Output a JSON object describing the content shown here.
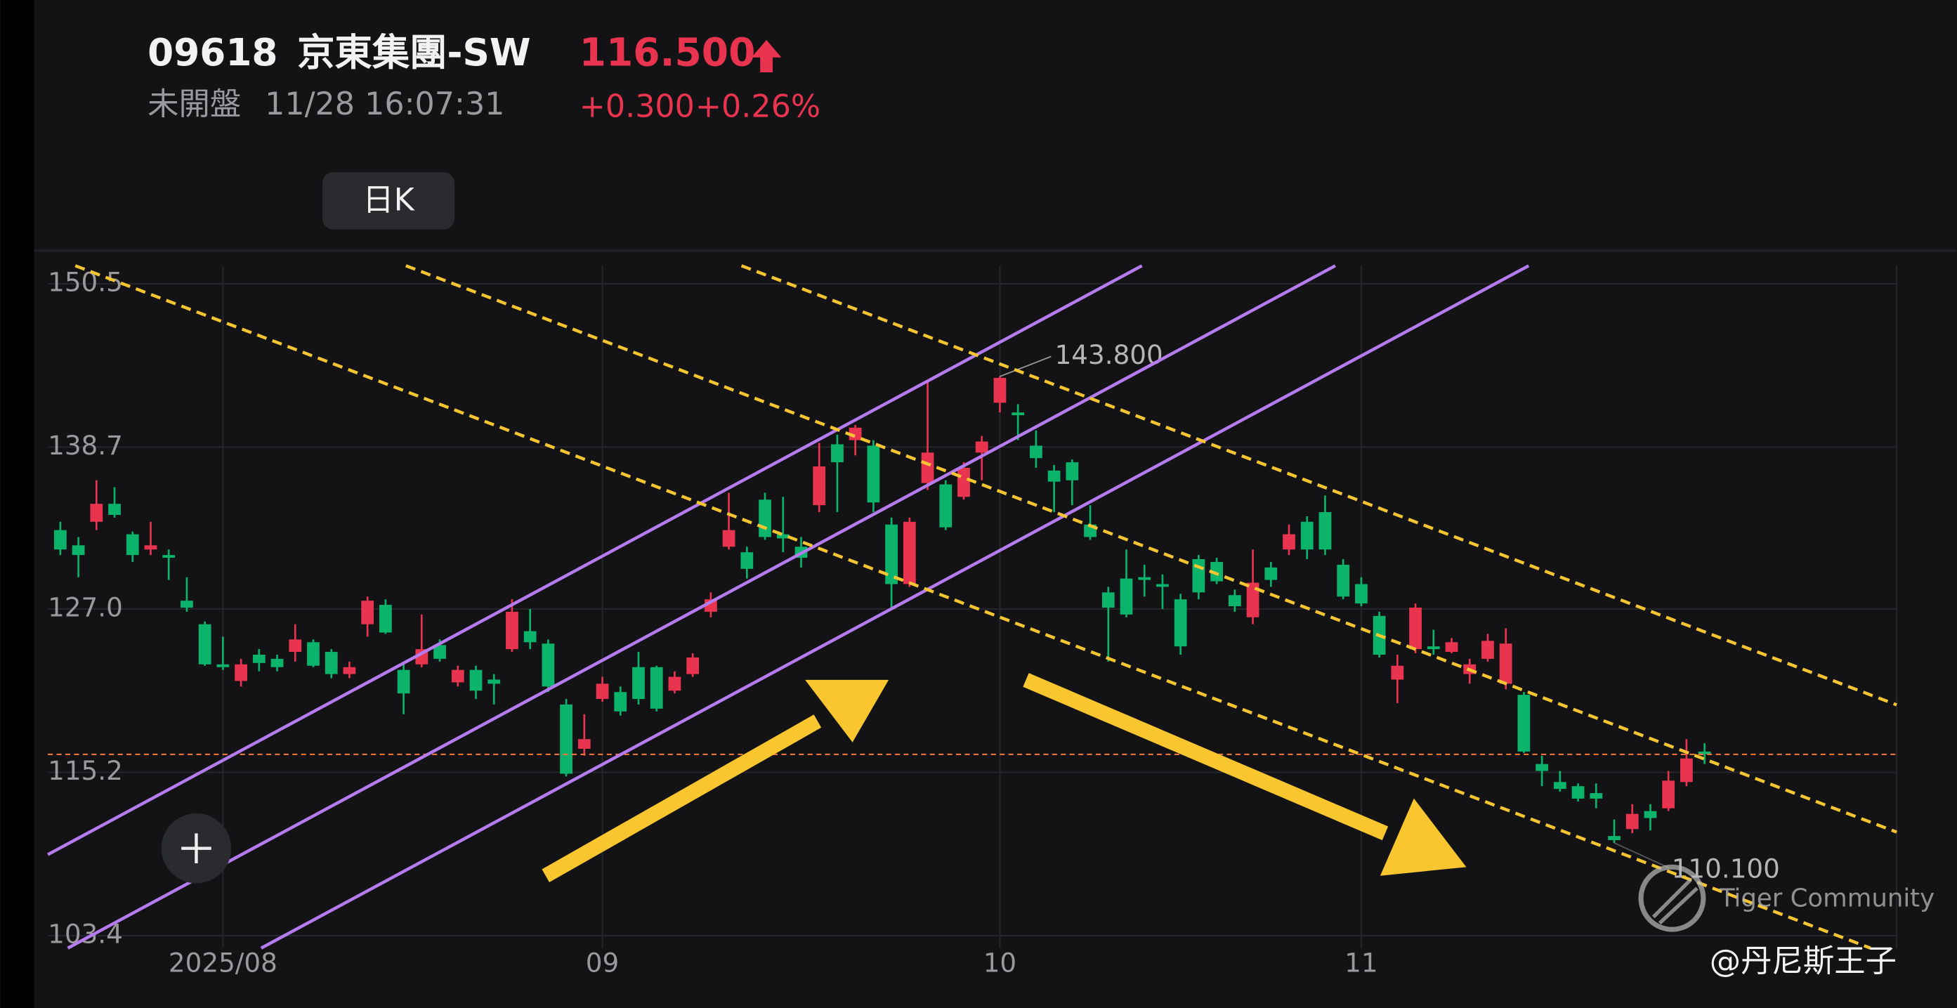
{
  "header": {
    "code": "09618",
    "name": "京東集團-SW",
    "price": "116.500",
    "status": "未開盤",
    "time": "11/28 16:07:31",
    "change": "+0.300",
    "change_pct": "+0.26%",
    "period_button": "日K"
  },
  "watermark": {
    "brand": "Tiger Community",
    "author": "@丹尼斯王子"
  },
  "chart_data": {
    "type": "candlestick",
    "up_color": "#e8344e",
    "down_color": "#0bb36b",
    "grid": true,
    "ylim": [
      102.5,
      151.8
    ],
    "yticks": [
      150.5,
      138.7,
      {
        "value": 127,
        "label": "127.0"
      },
      115.2,
      103.4
    ],
    "categories": [
      null,
      null,
      null,
      null,
      null,
      null,
      null,
      null,
      null,
      "2025/08",
      null,
      null,
      null,
      null,
      null,
      null,
      null,
      null,
      null,
      null,
      null,
      null,
      null,
      null,
      null,
      null,
      null,
      null,
      null,
      null,
      "09",
      null,
      null,
      null,
      null,
      null,
      null,
      null,
      null,
      null,
      null,
      null,
      null,
      null,
      null,
      null,
      null,
      null,
      null,
      null,
      null,
      null,
      "10",
      null,
      null,
      null,
      null,
      null,
      null,
      null,
      null,
      null,
      null,
      null,
      null,
      null,
      null,
      null,
      null,
      null,
      null,
      null,
      "11",
      null,
      null,
      null,
      null,
      null,
      null,
      null,
      null,
      null,
      null,
      null,
      null,
      null,
      null,
      null,
      null,
      null,
      null,
      null
    ],
    "ohlc": [
      [
        132.7,
        133.3,
        130.9,
        131.3
      ],
      [
        131.6,
        132.2,
        129.3,
        130.9
      ],
      [
        133.3,
        136.3,
        132.7,
        134.6
      ],
      [
        134.6,
        135.8,
        133.6,
        133.8
      ],
      [
        132.4,
        132.6,
        130.4,
        130.9
      ],
      [
        131.3,
        133.3,
        130.9,
        131.6
      ],
      [
        130.9,
        131.3,
        129.1,
        130.7
      ],
      [
        127.6,
        129.3,
        126.8,
        127.1
      ],
      [
        125.9,
        126.1,
        122.9,
        123.0
      ],
      [
        123.0,
        125.0,
        122.6,
        122.8
      ],
      [
        121.8,
        123.4,
        121.4,
        123.0
      ],
      [
        123.7,
        124.1,
        122.5,
        123.1
      ],
      [
        123.4,
        123.7,
        122.5,
        122.8
      ],
      [
        123.9,
        125.9,
        123.2,
        124.8
      ],
      [
        124.6,
        124.8,
        122.8,
        122.9
      ],
      [
        123.9,
        124.1,
        122.0,
        122.3
      ],
      [
        122.3,
        123.2,
        122.0,
        122.8
      ],
      [
        125.9,
        127.9,
        125.0,
        127.6
      ],
      [
        127.3,
        127.7,
        125.2,
        125.3
      ],
      [
        122.6,
        123.2,
        119.4,
        120.9
      ],
      [
        123.0,
        126.6,
        122.8,
        124.1
      ],
      [
        124.4,
        124.8,
        123.2,
        123.4
      ],
      [
        121.7,
        122.9,
        121.4,
        122.6
      ],
      [
        122.6,
        122.9,
        120.5,
        121.1
      ],
      [
        121.9,
        122.3,
        120.1,
        121.6
      ],
      [
        124.1,
        127.7,
        123.9,
        126.8
      ],
      [
        125.4,
        127.0,
        124.1,
        124.6
      ],
      [
        124.5,
        124.8,
        121.0,
        121.4
      ],
      [
        120.1,
        120.5,
        114.9,
        115.1
      ],
      [
        116.9,
        119.4,
        116.4,
        117.6
      ],
      [
        120.5,
        122.1,
        120.3,
        121.6
      ],
      [
        121.0,
        121.4,
        119.3,
        119.6
      ],
      [
        122.8,
        123.9,
        120.1,
        120.5
      ],
      [
        122.8,
        122.9,
        119.6,
        119.8
      ],
      [
        121.1,
        122.5,
        120.9,
        122.1
      ],
      [
        122.3,
        123.8,
        122.1,
        123.5
      ],
      [
        126.8,
        128.2,
        126.4,
        127.7
      ],
      [
        131.5,
        135.4,
        131.3,
        132.7
      ],
      [
        131.1,
        131.5,
        129.2,
        129.9
      ],
      [
        134.9,
        135.4,
        132.0,
        132.2
      ],
      [
        132.4,
        135.1,
        131.1,
        132.1
      ],
      [
        131.5,
        132.2,
        130.0,
        130.7
      ],
      [
        134.5,
        139.0,
        134.0,
        137.3
      ],
      [
        138.9,
        139.6,
        134.0,
        137.6
      ],
      [
        139.2,
        140.3,
        138.1,
        140.1
      ],
      [
        138.8,
        139.2,
        134.0,
        134.7
      ],
      [
        133.1,
        133.6,
        127.1,
        128.8
      ],
      [
        128.8,
        133.6,
        128.6,
        133.3
      ],
      [
        136.1,
        143.5,
        135.6,
        138.3
      ],
      [
        136.0,
        136.3,
        132.7,
        132.9
      ],
      [
        135.1,
        137.6,
        134.9,
        137.2
      ],
      [
        138.3,
        139.5,
        136.3,
        139.1
      ],
      [
        141.9,
        143.8,
        141.2,
        143.7
      ],
      [
        141.2,
        141.8,
        139.2,
        141.0
      ],
      [
        138.8,
        139.9,
        137.2,
        137.9
      ],
      [
        137.0,
        137.4,
        134.0,
        136.2
      ],
      [
        137.6,
        137.8,
        134.5,
        136.3
      ],
      [
        133.1,
        134.5,
        132.0,
        132.2
      ],
      [
        128.2,
        128.6,
        123.2,
        127.1
      ],
      [
        129.2,
        131.3,
        126.4,
        126.6
      ],
      [
        129.3,
        130.2,
        127.9,
        129.1
      ],
      [
        128.8,
        129.5,
        127.0,
        128.6
      ],
      [
        127.7,
        128.1,
        123.7,
        124.3
      ],
      [
        130.6,
        130.9,
        127.7,
        128.2
      ],
      [
        130.4,
        130.7,
        128.8,
        129.0
      ],
      [
        128.0,
        128.4,
        126.8,
        127.2
      ],
      [
        126.4,
        131.3,
        125.9,
        128.9
      ],
      [
        130.0,
        130.4,
        128.6,
        129.1
      ],
      [
        131.3,
        133.1,
        130.9,
        132.4
      ],
      [
        133.3,
        133.7,
        130.6,
        131.3
      ],
      [
        134.0,
        135.2,
        130.9,
        131.3
      ],
      [
        130.2,
        130.6,
        127.7,
        127.9
      ],
      [
        128.8,
        129.3,
        127.2,
        127.4
      ],
      [
        126.5,
        126.8,
        123.5,
        123.7
      ],
      [
        121.9,
        123.7,
        120.2,
        122.9
      ],
      [
        124.1,
        127.4,
        123.8,
        127.1
      ],
      [
        124.3,
        125.5,
        123.7,
        124.1
      ],
      [
        123.9,
        124.9,
        123.8,
        124.6
      ],
      [
        122.3,
        123.4,
        121.6,
        123.0
      ],
      [
        123.4,
        125.2,
        123.2,
        124.7
      ],
      [
        121.6,
        125.6,
        121.2,
        124.5
      ],
      [
        120.8,
        121.0,
        116.6,
        116.7
      ],
      [
        115.8,
        116.4,
        114.2,
        115.3
      ],
      [
        114.5,
        115.3,
        113.8,
        114.0
      ],
      [
        114.2,
        114.4,
        113.1,
        113.3
      ],
      [
        113.7,
        114.4,
        112.6,
        113.3
      ],
      [
        110.6,
        111.8,
        110.1,
        110.3
      ],
      [
        111.1,
        112.9,
        110.8,
        112.2
      ],
      [
        112.4,
        112.9,
        111.0,
        111.9
      ],
      [
        112.6,
        115.3,
        112.4,
        114.6
      ],
      [
        114.5,
        117.6,
        114.2,
        116.2
      ],
      [
        116.7,
        117.3,
        115.8,
        116.5
      ]
    ],
    "annotations": [
      {
        "value": 143.8,
        "label": "143.800"
      },
      {
        "value": 110.1,
        "label": "110.100"
      }
    ]
  }
}
